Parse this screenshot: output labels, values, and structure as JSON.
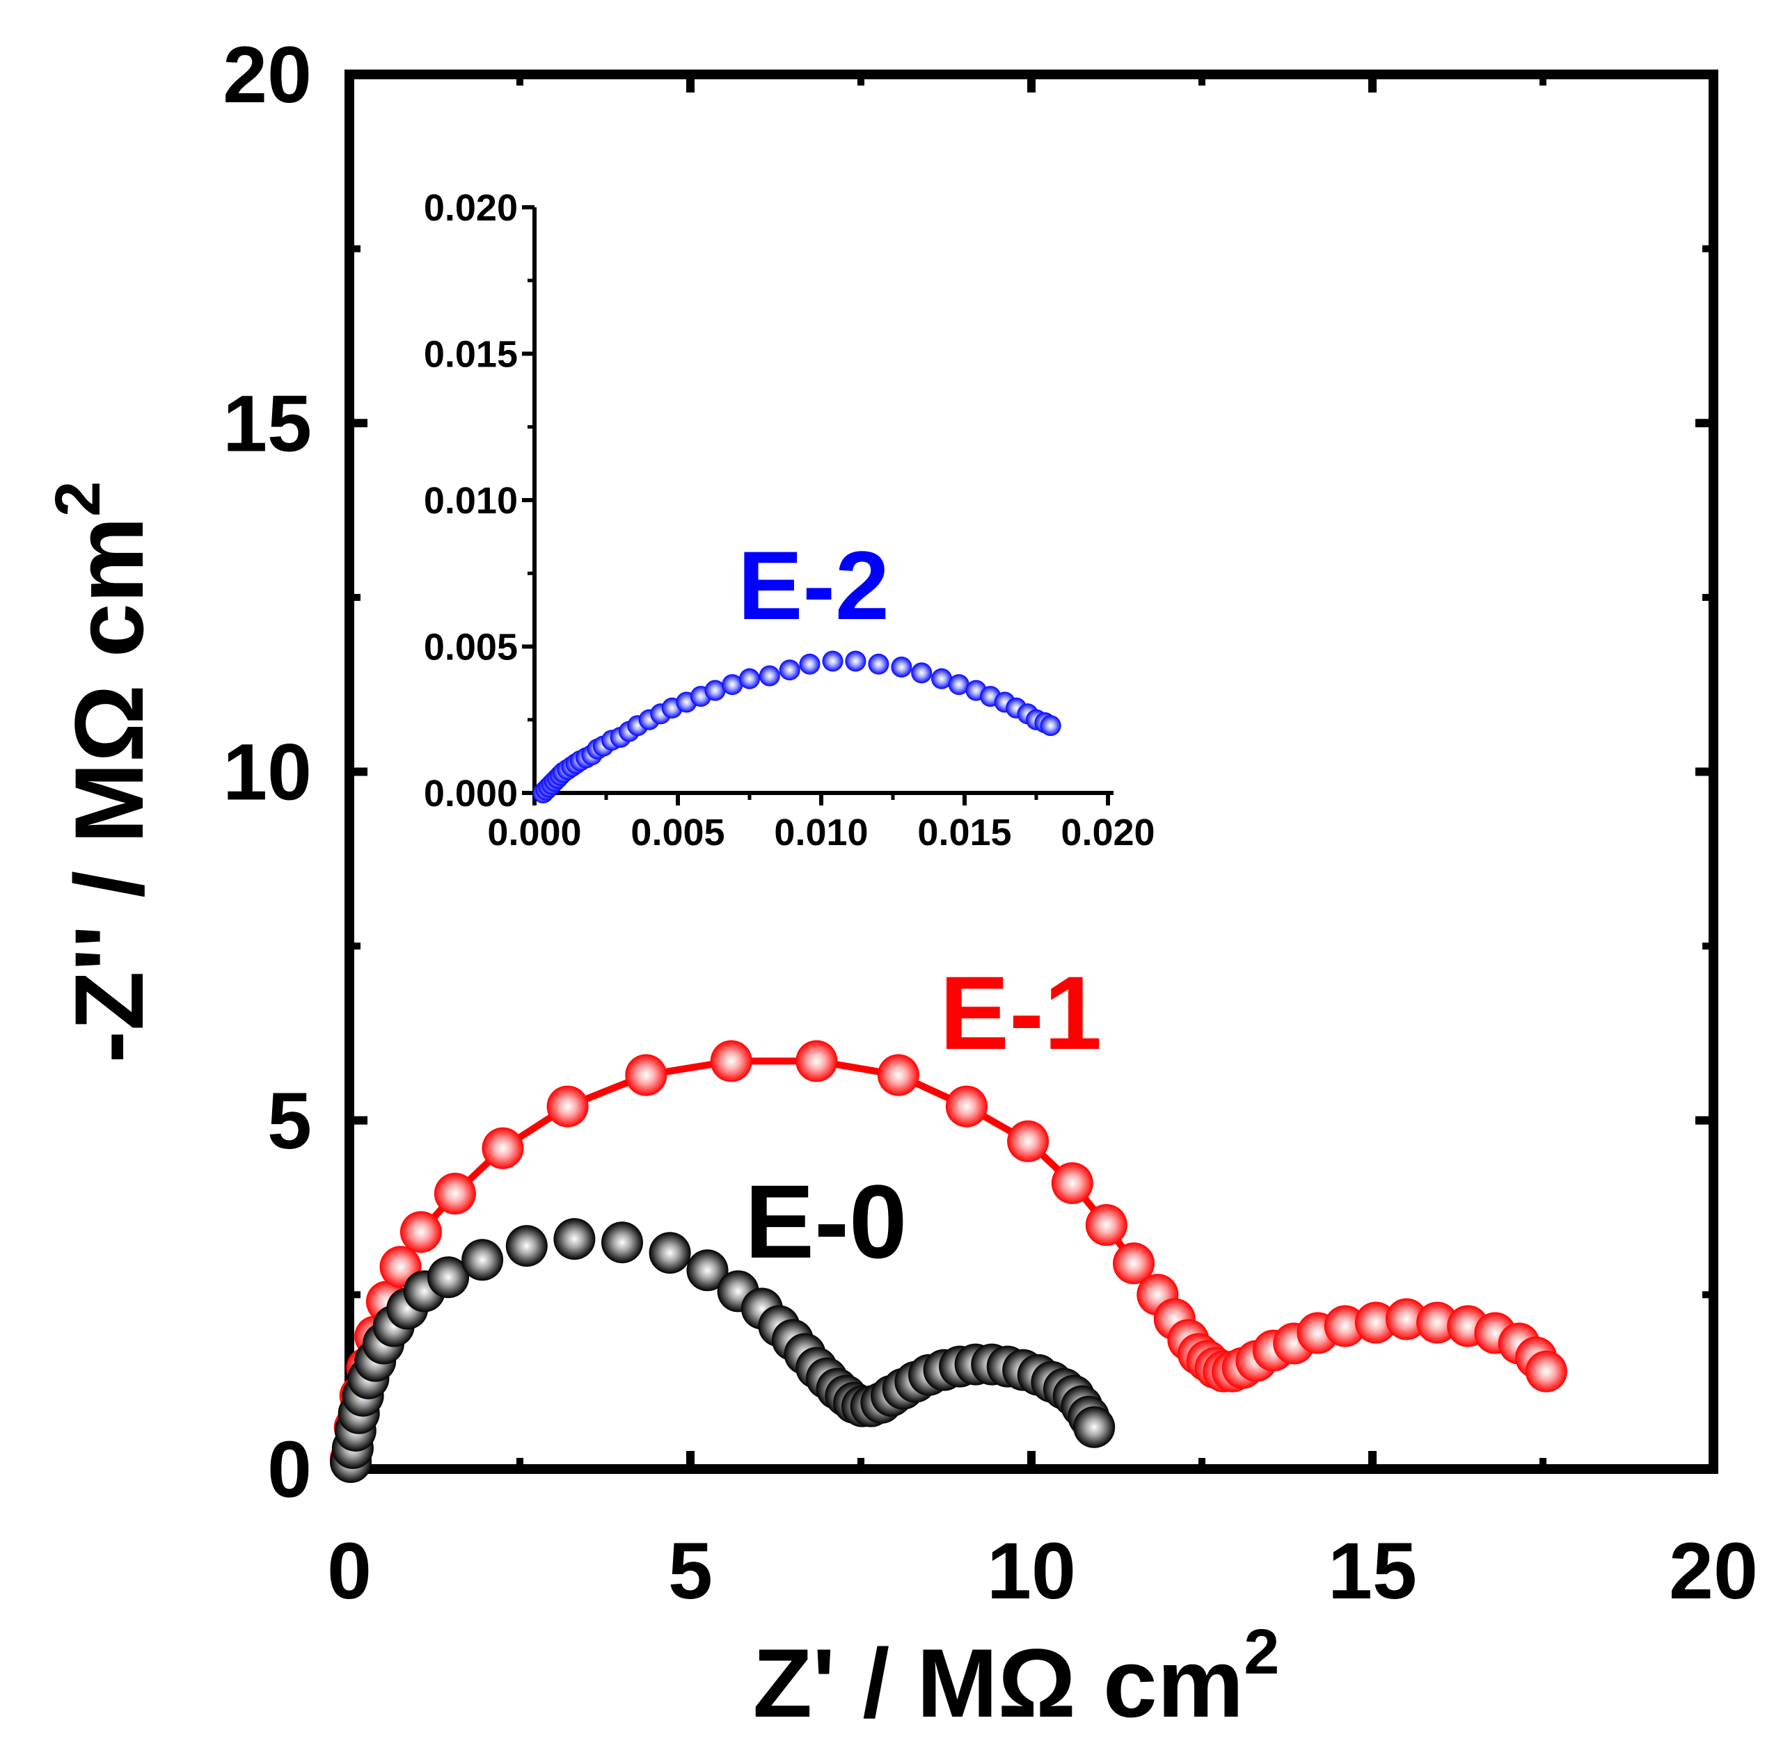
{
  "chart_data": [
    {
      "type": "scatter",
      "title": "",
      "xlabel": "Z' / MΩ cm",
      "ylabel": "-Z'' / MΩ cm",
      "label_superscript": "2",
      "xlim": [
        0,
        20
      ],
      "ylim": [
        0,
        20
      ],
      "xticks": [
        "0",
        "5",
        "10",
        "15",
        "20"
      ],
      "yticks": [
        "0",
        "5",
        "10",
        "15",
        "20"
      ],
      "grid": false,
      "series": [
        {
          "name": "E-1",
          "color": "#ff0000",
          "connected": true,
          "x": [
            0.02,
            0.08,
            0.16,
            0.26,
            0.38,
            0.55,
            0.75,
            1.05,
            1.55,
            2.25,
            3.2,
            4.35,
            5.6,
            6.85,
            8.05,
            9.05,
            9.95,
            10.6,
            11.1,
            11.5,
            11.85,
            12.1,
            12.3,
            12.45,
            12.58,
            12.7,
            12.82,
            12.95,
            13.1,
            13.3,
            13.55,
            13.85,
            14.2,
            14.6,
            15.05,
            15.5,
            15.95,
            16.4,
            16.8,
            17.15,
            17.4,
            17.55
          ],
          "y": [
            0.15,
            0.6,
            1.05,
            1.45,
            1.9,
            2.4,
            2.9,
            3.4,
            3.95,
            4.6,
            5.2,
            5.65,
            5.85,
            5.85,
            5.65,
            5.2,
            4.7,
            4.1,
            3.5,
            2.95,
            2.5,
            2.15,
            1.85,
            1.65,
            1.55,
            1.45,
            1.4,
            1.4,
            1.45,
            1.55,
            1.7,
            1.8,
            1.95,
            2.05,
            2.1,
            2.15,
            2.1,
            2.05,
            1.95,
            1.8,
            1.6,
            1.4
          ]
        },
        {
          "name": "E-0",
          "color": "#000000",
          "connected": false,
          "x": [
            0.02,
            0.05,
            0.09,
            0.14,
            0.2,
            0.28,
            0.38,
            0.5,
            0.65,
            0.85,
            1.1,
            1.45,
            1.95,
            2.6,
            3.3,
            4.0,
            4.7,
            5.25,
            5.7,
            6.05,
            6.3,
            6.5,
            6.68,
            6.85,
            7.0,
            7.15,
            7.28,
            7.4,
            7.52,
            7.65,
            7.8,
            7.95,
            8.12,
            8.3,
            8.5,
            8.72,
            8.95,
            9.18,
            9.42,
            9.65,
            9.88,
            10.1,
            10.3,
            10.48,
            10.62,
            10.74,
            10.84,
            10.92
          ],
          "y": [
            0.1,
            0.3,
            0.55,
            0.8,
            1.05,
            1.3,
            1.55,
            1.8,
            2.05,
            2.3,
            2.55,
            2.75,
            3.0,
            3.2,
            3.3,
            3.25,
            3.1,
            2.85,
            2.55,
            2.3,
            2.05,
            1.85,
            1.65,
            1.45,
            1.3,
            1.15,
            1.05,
            0.95,
            0.9,
            0.9,
            0.95,
            1.05,
            1.15,
            1.25,
            1.35,
            1.42,
            1.47,
            1.5,
            1.5,
            1.47,
            1.42,
            1.35,
            1.25,
            1.15,
            1.05,
            0.9,
            0.75,
            0.6
          ]
        }
      ],
      "annotations": [
        "E-1",
        "E-0"
      ]
    },
    {
      "type": "scatter",
      "title": "",
      "role": "inset",
      "xlabel": "",
      "ylabel": "",
      "xlim": [
        0,
        0.02
      ],
      "ylim": [
        0,
        0.02
      ],
      "xticks": [
        "0.000",
        "0.005",
        "0.010",
        "0.015",
        "0.020"
      ],
      "yticks": [
        "0.000",
        "0.005",
        "0.010",
        "0.015",
        "0.020"
      ],
      "grid": false,
      "series": [
        {
          "name": "E-2",
          "color": "#0000ff",
          "connected": false,
          "x": [
            0.0003,
            0.0004,
            0.0005,
            0.0006,
            0.0007,
            0.0008,
            0.0009,
            0.001,
            0.00115,
            0.0013,
            0.00145,
            0.0016,
            0.0018,
            0.002,
            0.0022,
            0.0024,
            0.0027,
            0.003,
            0.0033,
            0.0036,
            0.004,
            0.0044,
            0.0048,
            0.0053,
            0.0058,
            0.0063,
            0.0069,
            0.0075,
            0.0082,
            0.0089,
            0.0096,
            0.0104,
            0.0112,
            0.012,
            0.0128,
            0.0135,
            0.0142,
            0.0148,
            0.0154,
            0.0159,
            0.0164,
            0.0168,
            0.0172,
            0.0175,
            0.0178,
            0.018
          ],
          "y": [
            0.0,
            0.0001,
            0.0002,
            0.0003,
            0.0004,
            0.0005,
            0.0006,
            0.0007,
            0.0008,
            0.0009,
            0.001,
            0.0011,
            0.0012,
            0.0013,
            0.0015,
            0.0016,
            0.0018,
            0.0019,
            0.0021,
            0.0023,
            0.0025,
            0.0027,
            0.0029,
            0.0031,
            0.0033,
            0.0035,
            0.0037,
            0.0039,
            0.004,
            0.0042,
            0.0044,
            0.0045,
            0.0045,
            0.0044,
            0.0043,
            0.0041,
            0.0039,
            0.0037,
            0.0035,
            0.0033,
            0.0031,
            0.0029,
            0.0027,
            0.0025,
            0.0024,
            0.0023
          ]
        }
      ],
      "annotations": [
        "E-2"
      ]
    }
  ]
}
